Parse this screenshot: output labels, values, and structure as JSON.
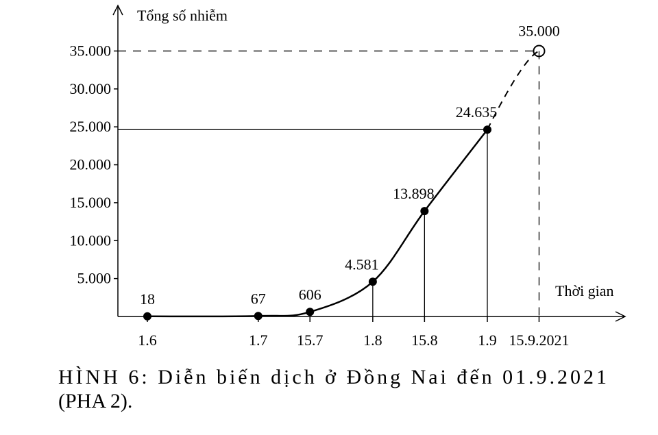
{
  "chart_data": {
    "type": "line",
    "y_label": "Tổng số nhiễm",
    "x_label": "Thời gian",
    "caption": [
      "HÌNH 6: Diễn biến dịch ở Đồng Nai đến 01.9.2021",
      "(PHA 2)."
    ],
    "categories": [
      "1.6",
      "1.7",
      "15.7",
      "1.8",
      "15.8",
      "1.9",
      "15.9.2021"
    ],
    "values": [
      18,
      67,
      606,
      4581,
      13898,
      24635,
      35000
    ],
    "value_labels": [
      "18",
      "67",
      "606",
      "4.581",
      "13.898",
      "24.635",
      "35.000"
    ],
    "projected": [
      false,
      false,
      false,
      false,
      false,
      false,
      true
    ],
    "color": "#000000",
    "ylim": [
      0,
      41000
    ],
    "yticks": [
      {
        "value": 5000,
        "label": "5.000"
      },
      {
        "value": 10000,
        "label": "10.000"
      },
      {
        "value": 15000,
        "label": "15.000"
      },
      {
        "value": 20000,
        "label": "20.000"
      },
      {
        "value": 25000,
        "label": "25.000"
      },
      {
        "value": 30000,
        "label": "30.000"
      },
      {
        "value": 35000,
        "label": "35.000"
      }
    ]
  }
}
